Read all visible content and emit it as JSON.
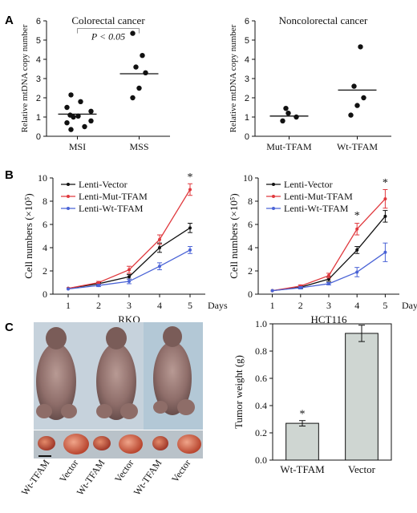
{
  "panels": {
    "a": "A",
    "b": "B",
    "c": "C"
  },
  "colors": {
    "vector": "#111111",
    "mut": "#e0393e",
    "wt": "#4a63d6",
    "bar": "#cfd6d2"
  },
  "chart_data": [
    {
      "type": "scatter",
      "title": "Colorectal cancer",
      "ylabel": "Relative mtDNA copy number",
      "ylim": [
        0,
        6
      ],
      "yticks": [
        "0",
        "1",
        "2",
        "3",
        "4",
        "5",
        "6"
      ],
      "categories": [
        "MSI",
        "MSS"
      ],
      "points": [
        [
          0.35,
          0.5,
          0.8,
          0.7,
          1.0,
          1.05,
          1.1,
          1.3,
          1.5,
          1.8,
          2.15
        ],
        [
          2.0,
          2.5,
          3.3,
          3.6,
          4.2,
          5.35
        ]
      ],
      "medians": [
        1.15,
        3.25
      ],
      "annotation": "P < 0.05"
    },
    {
      "type": "scatter",
      "title": "Noncolorectal cancer",
      "ylabel": "Relative mtDNA copy number",
      "ylim": [
        0,
        6
      ],
      "yticks": [
        "0",
        "1",
        "2",
        "3",
        "4",
        "5",
        "6"
      ],
      "categories": [
        "Mut-TFAM",
        "Wt-TFAM"
      ],
      "points": [
        [
          0.8,
          1.0,
          1.2,
          1.45
        ],
        [
          1.1,
          1.6,
          2.0,
          2.6,
          4.65
        ]
      ],
      "medians": [
        1.05,
        2.4
      ]
    },
    {
      "type": "line",
      "xlabel": "RKO",
      "x_unit": "Days",
      "ylabel": "Cell numbers (×10⁵)",
      "ylim": [
        0,
        10
      ],
      "yticks": [
        "0",
        "2",
        "4",
        "6",
        "8",
        "10"
      ],
      "x": [
        1,
        2,
        3,
        4,
        5
      ],
      "xticks": [
        "1",
        "2",
        "3",
        "4",
        "5"
      ],
      "series": [
        {
          "name": "Lenti-Vector",
          "values": [
            0.5,
            0.9,
            1.5,
            4.0,
            5.7
          ],
          "err": [
            0.05,
            0.1,
            0.2,
            0.4,
            0.4
          ]
        },
        {
          "name": "Lenti-Mut-TFAM",
          "values": [
            0.5,
            1.0,
            2.1,
            4.7,
            9.0
          ],
          "err": [
            0.05,
            0.1,
            0.3,
            0.4,
            0.5
          ]
        },
        {
          "name": "Lenti-Wt-TFAM",
          "values": [
            0.45,
            0.75,
            1.1,
            2.4,
            3.8
          ],
          "err": [
            0.05,
            0.1,
            0.2,
            0.3,
            0.3
          ]
        }
      ],
      "annotations": [
        {
          "x": 5,
          "y": 9.8,
          "text": "*"
        }
      ]
    },
    {
      "type": "line",
      "xlabel": "HCT116",
      "x_unit": "Days",
      "ylabel": "Cell numbers (×10⁵)",
      "ylim": [
        0,
        10
      ],
      "yticks": [
        "0",
        "2",
        "4",
        "6",
        "8",
        "10"
      ],
      "x": [
        1,
        2,
        3,
        4,
        5
      ],
      "xticks": [
        "1",
        "2",
        "3",
        "4",
        "5"
      ],
      "series": [
        {
          "name": "Lenti-Vector",
          "values": [
            0.3,
            0.6,
            1.3,
            3.8,
            6.7
          ],
          "err": [
            0.03,
            0.1,
            0.2,
            0.3,
            0.5
          ]
        },
        {
          "name": "Lenti-Mut-TFAM",
          "values": [
            0.3,
            0.7,
            1.6,
            5.6,
            8.2
          ],
          "err": [
            0.03,
            0.1,
            0.2,
            0.5,
            0.8
          ]
        },
        {
          "name": "Lenti-Wt-TFAM",
          "values": [
            0.3,
            0.55,
            0.9,
            1.9,
            3.6
          ],
          "err": [
            0.03,
            0.1,
            0.1,
            0.4,
            0.8
          ]
        }
      ],
      "annotations": [
        {
          "x": 4,
          "y": 6.5,
          "text": "*"
        },
        {
          "x": 5,
          "y": 9.3,
          "text": "*"
        }
      ]
    },
    {
      "type": "bar",
      "ylabel": "Tumor weight (g)",
      "ylim": [
        0,
        1.0
      ],
      "yticks": [
        "0.0",
        "0.2",
        "0.4",
        "0.6",
        "0.8",
        "1.0"
      ],
      "categories": [
        "Wt-TFAM",
        "Vector"
      ],
      "values": [
        0.27,
        0.93
      ],
      "err": [
        0.02,
        0.06
      ],
      "annotations": [
        {
          "category": "Wt-TFAM",
          "text": "*"
        }
      ]
    }
  ],
  "photo_labels": [
    "Wt-TFAM",
    "Vector",
    "Wt-TFAM",
    "Vector",
    "Wt-TFAM",
    "Vector"
  ]
}
